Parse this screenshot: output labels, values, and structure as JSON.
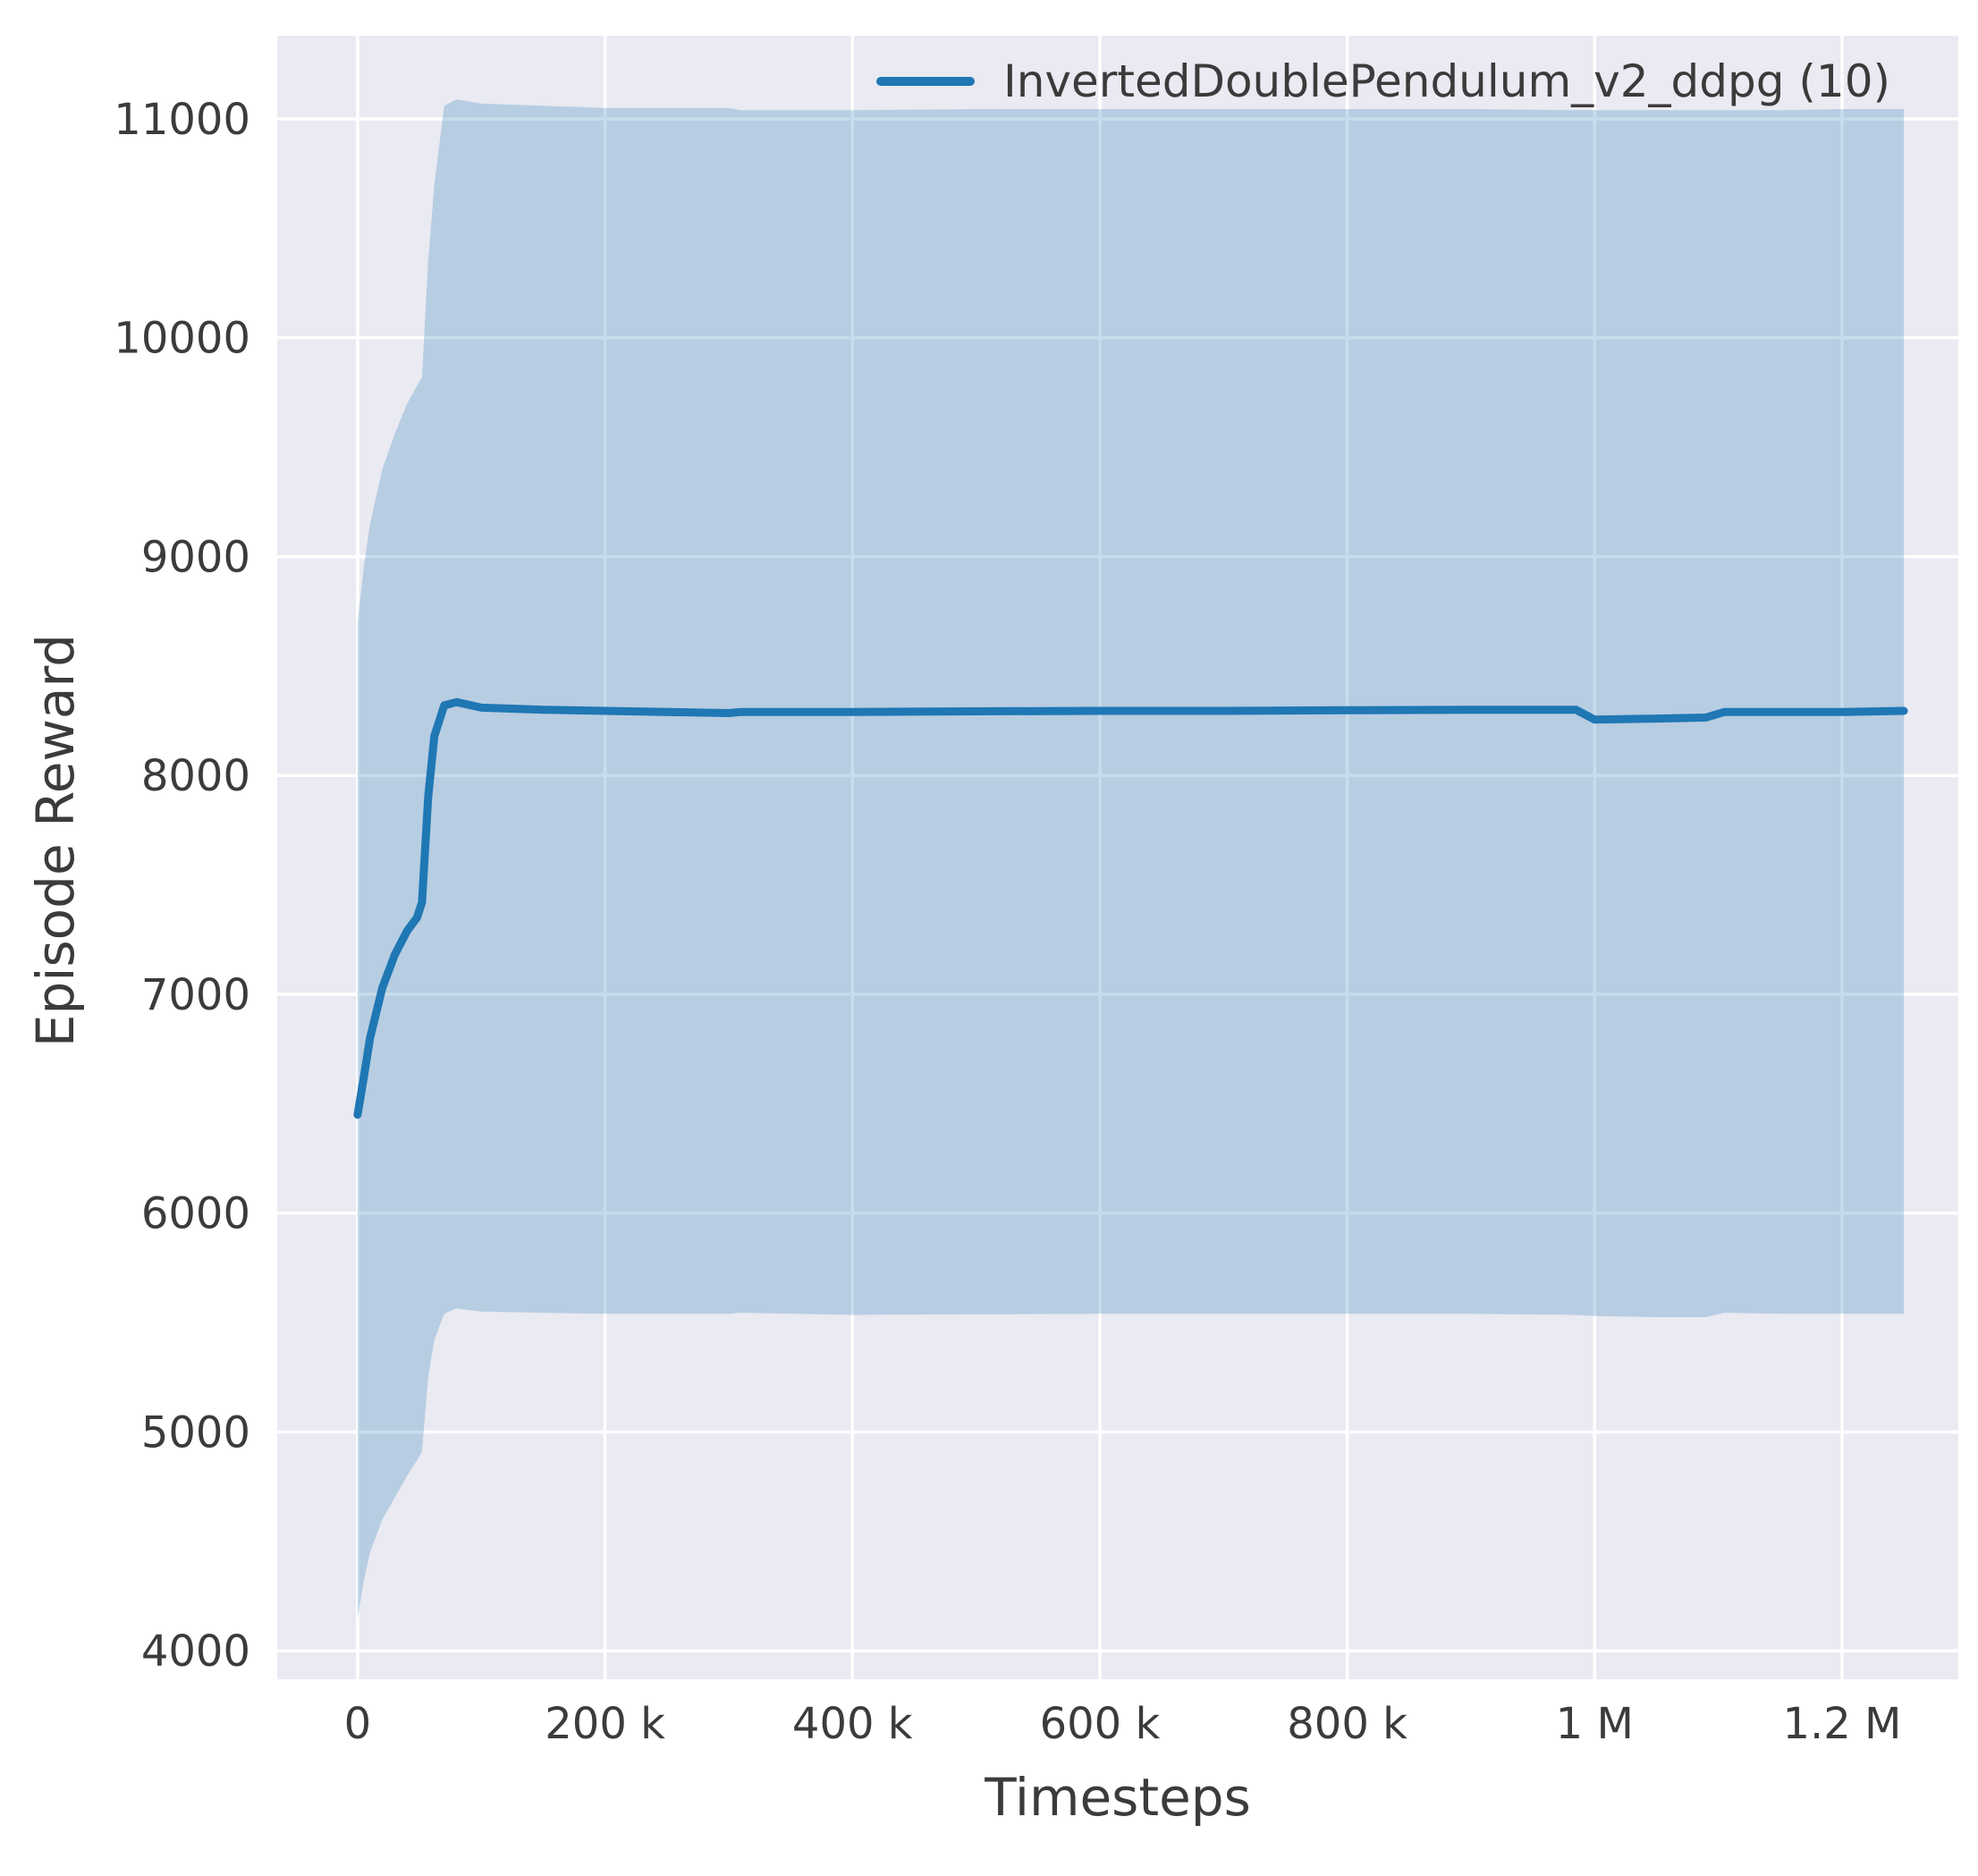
{
  "chart_data": {
    "type": "line",
    "title": "",
    "xlabel": "Timesteps",
    "ylabel": "Episode Reward",
    "grid": true,
    "legend_position": "upper center-right",
    "xlim": [
      -65000,
      1294000
    ],
    "ylim": [
      3870,
      11380
    ],
    "x_ticks": [
      {
        "value": 0,
        "label": "0"
      },
      {
        "value": 200000,
        "label": "200 k"
      },
      {
        "value": 400000,
        "label": "400 k"
      },
      {
        "value": 600000,
        "label": "600 k"
      },
      {
        "value": 800000,
        "label": "800 k"
      },
      {
        "value": 1000000,
        "label": "1 M"
      },
      {
        "value": 1200000,
        "label": "1.2 M"
      }
    ],
    "y_ticks": [
      {
        "value": 4000,
        "label": "4000"
      },
      {
        "value": 5000,
        "label": "5000"
      },
      {
        "value": 6000,
        "label": "6000"
      },
      {
        "value": 7000,
        "label": "7000"
      },
      {
        "value": 8000,
        "label": "8000"
      },
      {
        "value": 9000,
        "label": "9000"
      },
      {
        "value": 10000,
        "label": "10000"
      },
      {
        "value": 11000,
        "label": "11000"
      }
    ],
    "series": [
      {
        "name": "InvertedDoublePendulum_v2_ddpg (10)",
        "color": "#1f77b4",
        "x": [
          0,
          5000,
          10000,
          20000,
          30000,
          40000,
          48000,
          52000,
          57000,
          62000,
          70000,
          80000,
          100000,
          150000,
          200000,
          300000,
          310000,
          400000,
          500000,
          600000,
          700000,
          800000,
          900000,
          985000,
          1000000,
          1050000,
          1090000,
          1105000,
          1150000,
          1200000,
          1250000
        ],
        "y": [
          6450,
          6620,
          6800,
          7030,
          7180,
          7290,
          7350,
          7420,
          7900,
          8180,
          8320,
          8335,
          8310,
          8300,
          8295,
          8285,
          8290,
          8290,
          8293,
          8295,
          8295,
          8298,
          8300,
          8300,
          8255,
          8260,
          8265,
          8290,
          8290,
          8290,
          8295
        ],
        "band_upper": [
          8700,
          8950,
          9150,
          9400,
          9560,
          9700,
          9780,
          9820,
          10350,
          10700,
          11060,
          11090,
          11070,
          11060,
          11050,
          11050,
          11040,
          11040,
          11045,
          11045,
          11045,
          11045,
          11045,
          11040,
          11040,
          11040,
          11040,
          11040,
          11040,
          11045,
          11045
        ],
        "band_lower": [
          4150,
          4320,
          4450,
          4600,
          4700,
          4800,
          4870,
          4910,
          5250,
          5420,
          5540,
          5565,
          5550,
          5545,
          5540,
          5540,
          5545,
          5535,
          5538,
          5540,
          5540,
          5540,
          5540,
          5535,
          5530,
          5525,
          5525,
          5545,
          5540,
          5540,
          5540
        ]
      }
    ],
    "colors": {
      "plot_bg": "#eaeaf2",
      "grid": "#ffffff",
      "band_opacity": 0.25,
      "text": "#3b3b3b"
    }
  }
}
